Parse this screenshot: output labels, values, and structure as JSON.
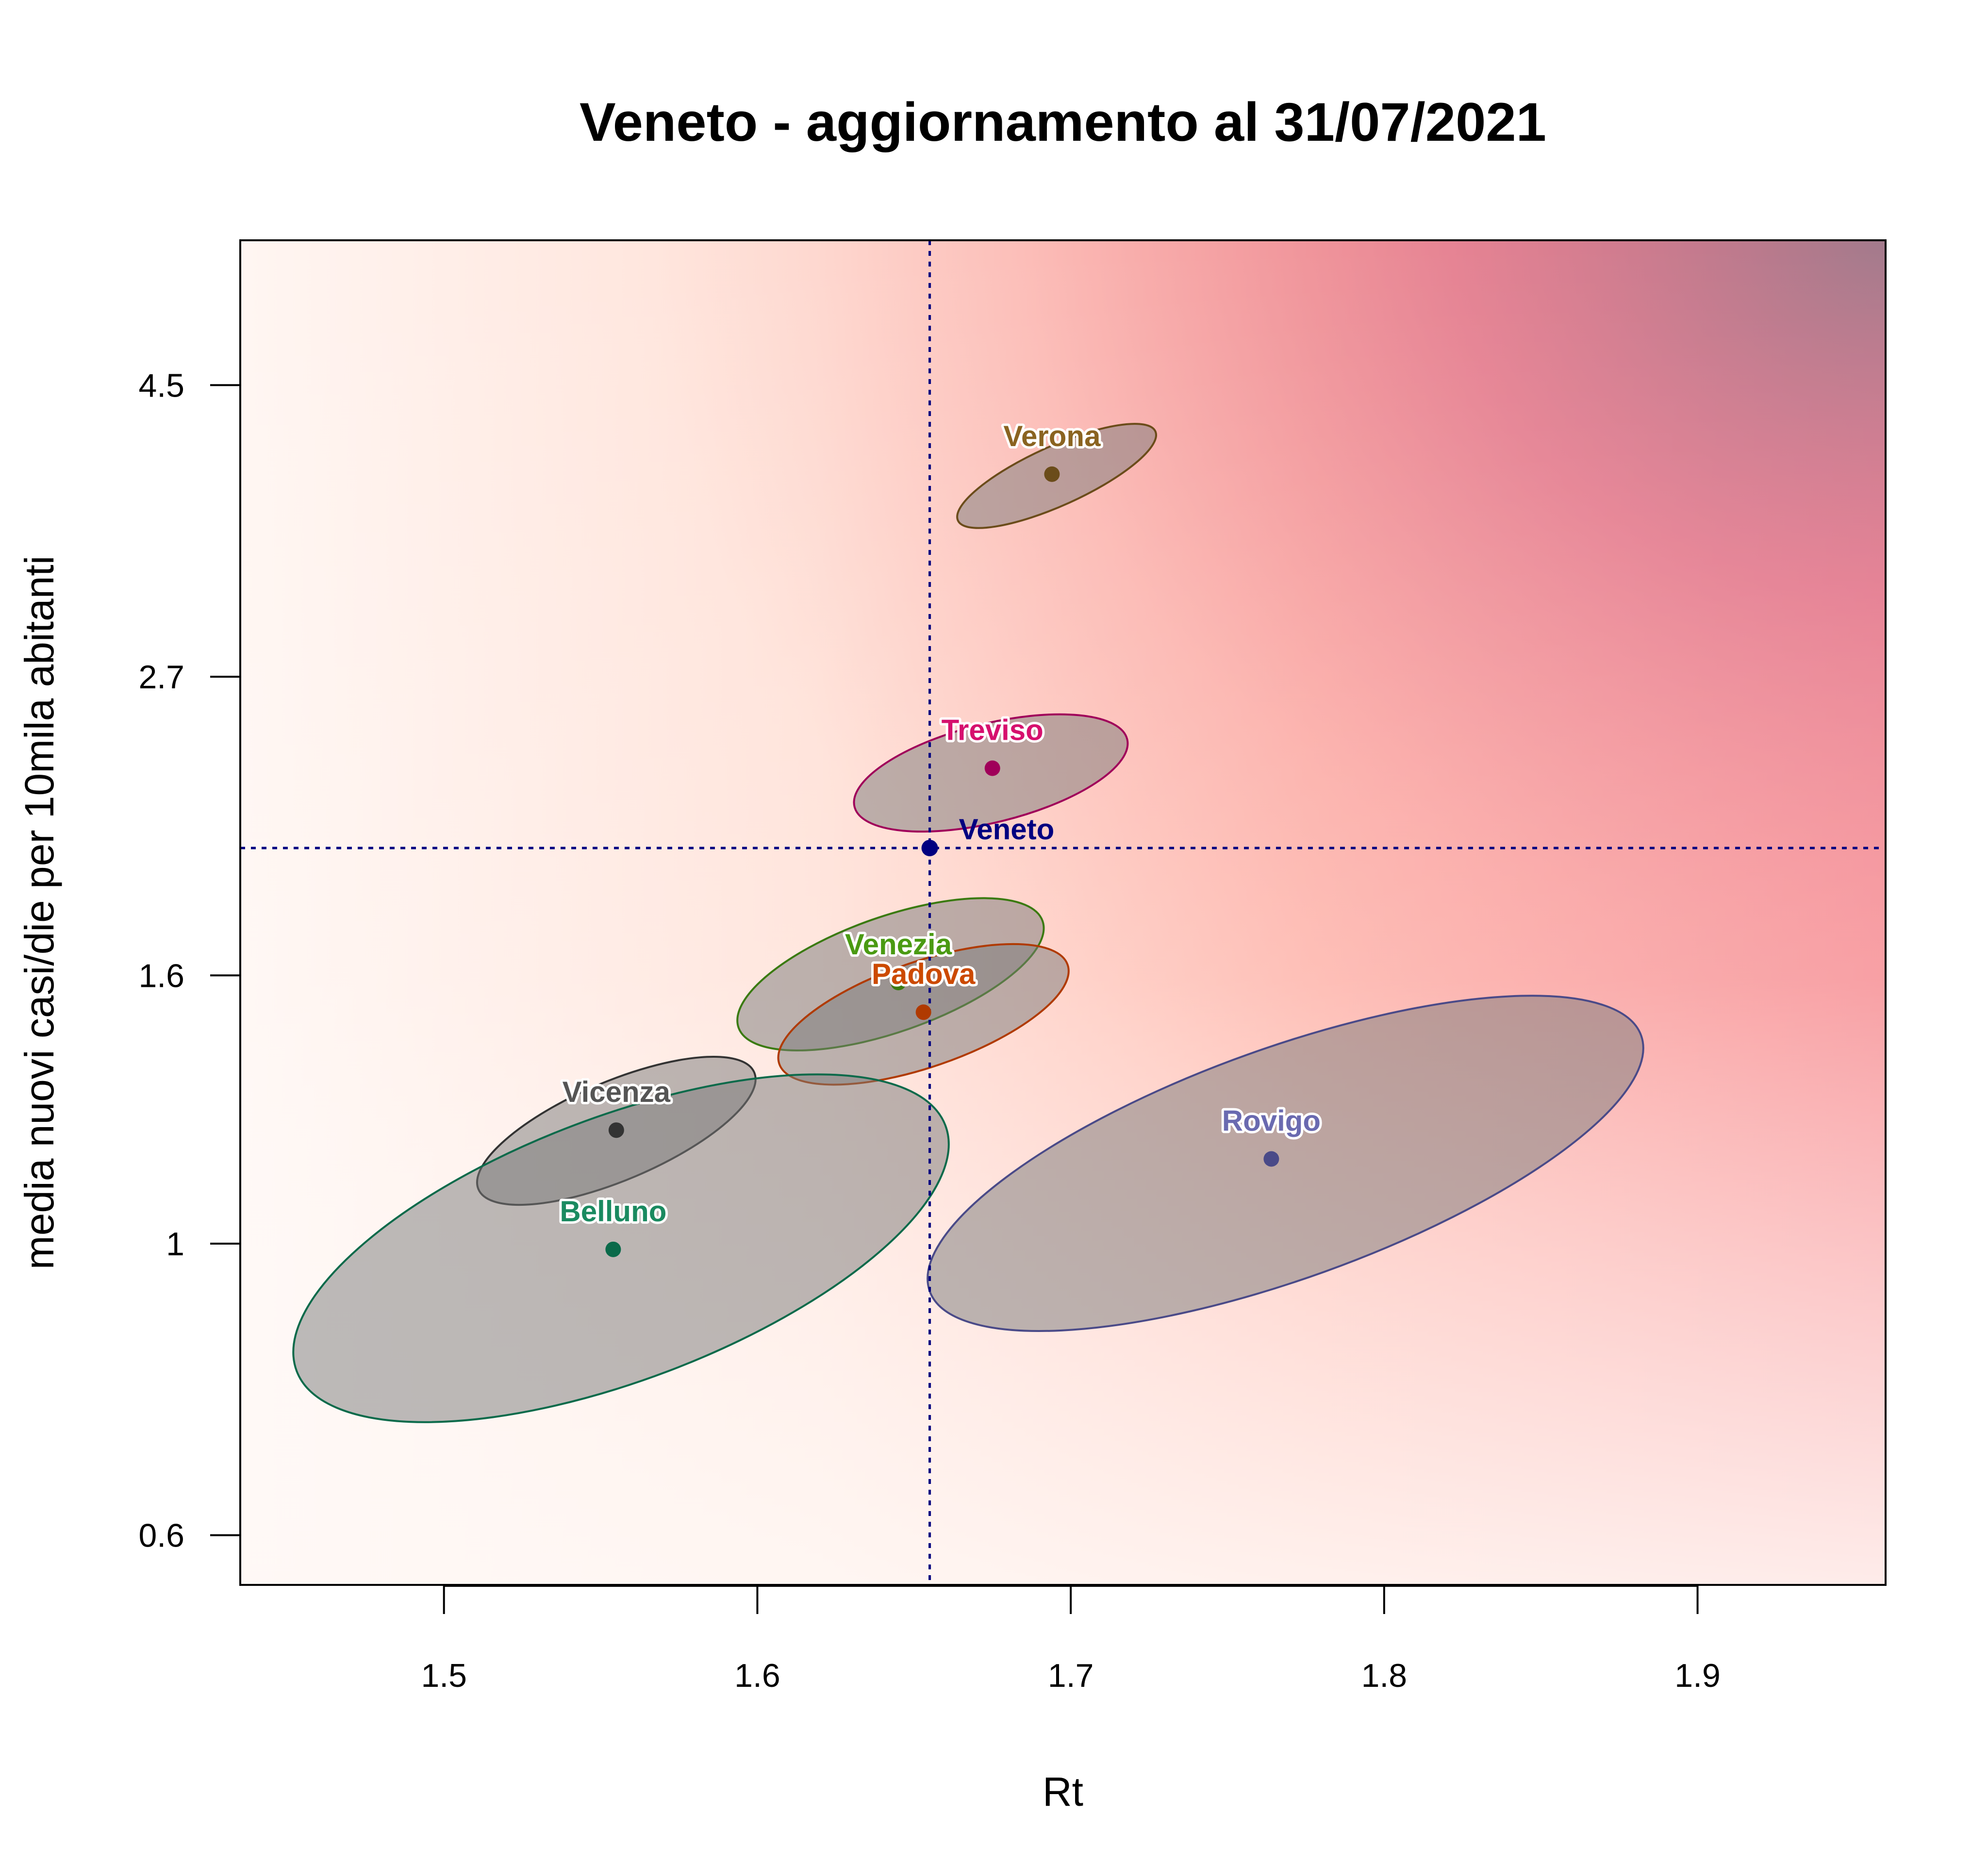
{
  "chart_data": {
    "type": "scatter",
    "title": "Veneto - aggiornamento al 31/07/2021",
    "xlabel": "Rt",
    "ylabel": "media nuovi casi/die per 10mila abitanti",
    "x_ticks": [
      1.5,
      1.6,
      1.7,
      1.8,
      1.9
    ],
    "x_tick_labels": [
      "1.5",
      "1.6",
      "1.7",
      "1.8",
      "1.9"
    ],
    "y_ticks": [
      0.6,
      1.0,
      1.6,
      2.7,
      4.5
    ],
    "y_tick_labels": [
      "0.6",
      "1",
      "1.6",
      "2.7",
      "4.5"
    ],
    "xlim": [
      1.435,
      1.96
    ],
    "y_scale": "log",
    "ylim": [
      0.55,
      5.8
    ],
    "grid": false,
    "background": "heatmap gradient rising toward high Rt and high incidence",
    "reference_point": {
      "name": "Veneto",
      "x": 1.655,
      "y": 2.0,
      "color": "#000080"
    },
    "points": [
      {
        "name": "Verona",
        "x": 1.694,
        "y": 3.85,
        "color": "#6b4c1a",
        "label_color": "#8a6320",
        "ellipse": {
          "x1": 1.664,
          "y1": 3.55,
          "x2": 1.727,
          "y2": 4.15,
          "ry": 0.018
        }
      },
      {
        "name": "Treviso",
        "x": 1.675,
        "y": 2.3,
        "color": "#a0005a",
        "label_color": "#d6106e",
        "ellipse": {
          "x1": 1.631,
          "y1": 2.15,
          "x2": 1.718,
          "y2": 2.42,
          "ry": 0.03
        }
      },
      {
        "name": "Venezia",
        "x": 1.645,
        "y": 1.58,
        "color": "#3a7a10",
        "label_color": "#4a9a12",
        "ellipse": {
          "x1": 1.594,
          "y1": 1.46,
          "x2": 1.691,
          "y2": 1.76,
          "ry": 0.035
        }
      },
      {
        "name": "Padova",
        "x": 1.653,
        "y": 1.5,
        "color": "#b03a00",
        "label_color": "#cc4a00",
        "ellipse": {
          "x1": 1.607,
          "y1": 1.37,
          "x2": 1.699,
          "y2": 1.63,
          "ry": 0.032
        }
      },
      {
        "name": "Vicenza",
        "x": 1.555,
        "y": 1.22,
        "color": "#333333",
        "label_color": "#555555",
        "ellipse": {
          "x1": 1.511,
          "y1": 1.1,
          "x2": 1.599,
          "y2": 1.35,
          "ry": 0.03
        }
      },
      {
        "name": "Belluno",
        "x": 1.554,
        "y": 0.99,
        "color": "#0a6a4a",
        "label_color": "#1a8a60",
        "ellipse": {
          "x1": 1.453,
          "y1": 0.8,
          "x2": 1.66,
          "y2": 1.23,
          "ry": 0.08
        }
      },
      {
        "name": "Rovigo",
        "x": 1.764,
        "y": 1.16,
        "color": "#4a4a88",
        "label_color": "#6a6ab0",
        "ellipse": {
          "x1": 1.655,
          "y1": 0.92,
          "x2": 1.882,
          "y2": 1.44,
          "ry": 0.07
        }
      }
    ]
  }
}
